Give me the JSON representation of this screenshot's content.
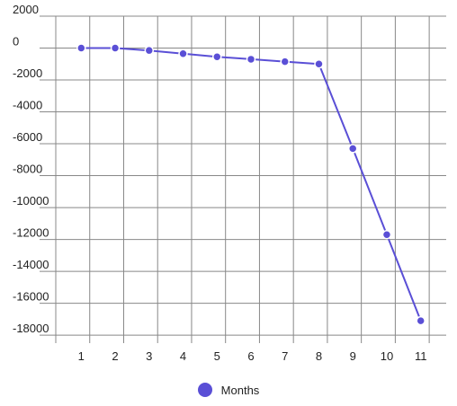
{
  "colors": {
    "series": "#5a4fd6",
    "grid": "#888888"
  },
  "chart_data": {
    "type": "line",
    "title": "",
    "xlabel": "",
    "ylabel": "",
    "x": [
      1,
      2,
      3,
      4,
      5,
      6,
      7,
      8,
      9,
      10,
      11
    ],
    "xlim": [
      0.25,
      11.75
    ],
    "ylim": [
      -18500,
      2000
    ],
    "y_ticks": [
      2000,
      0,
      -2000,
      -4000,
      -6000,
      -8000,
      -10000,
      -12000,
      -14000,
      -16000,
      -18000
    ],
    "grid": true,
    "legend_position": "bottom",
    "series": [
      {
        "name": "Months",
        "values": [
          0,
          0,
          -150,
          -350,
          -550,
          -700,
          -850,
          -1000,
          -6300,
          -11700,
          -17100
        ]
      }
    ]
  }
}
